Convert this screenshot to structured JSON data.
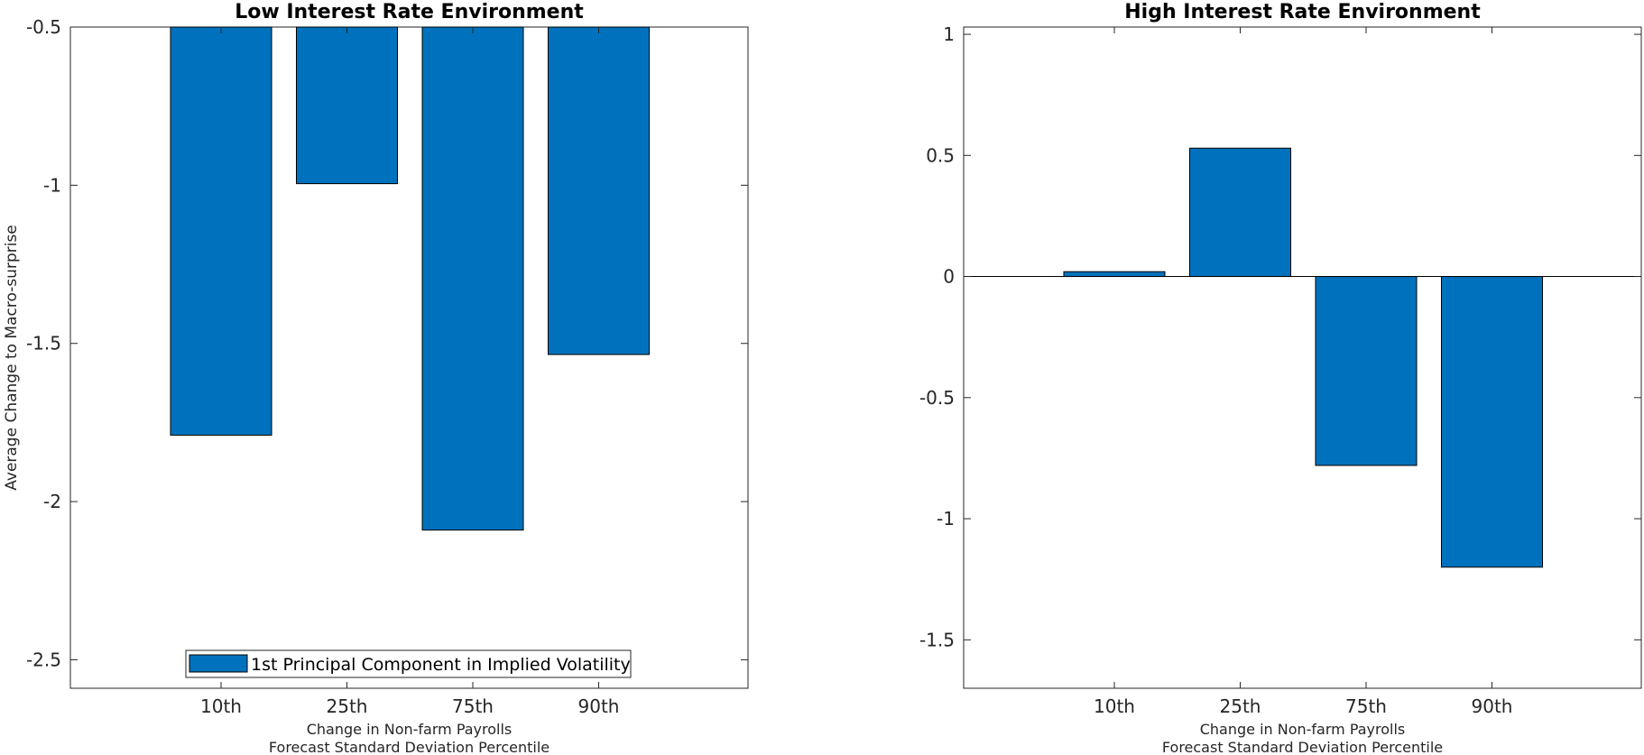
{
  "chart_data": [
    {
      "type": "bar",
      "title": "Low Interest Rate Environment",
      "categories": [
        "10th",
        "25th",
        "75th",
        "90th"
      ],
      "series": [
        {
          "name": "1st Principal Component in Implied Volatility",
          "values": [
            -1.79,
            -0.995,
            -2.09,
            -1.535
          ]
        }
      ],
      "bar_color": "#0072BD",
      "baseline": -0.5,
      "xlabel": [
        "Change in Non-farm Payrolls",
        "Forecast Standard Deviation Percentile"
      ],
      "ylabel": "Average Change to Macro-surprise",
      "ylim": [
        -2.59,
        -0.5
      ],
      "yticks": [
        "-0.5",
        "-1",
        "-1.5",
        "-2",
        "-2.5"
      ],
      "ytick_values": [
        -0.5,
        -1,
        -1.5,
        -2,
        -2.5
      ],
      "legend": "bottom-center",
      "grid": false
    },
    {
      "type": "bar",
      "title": "High Interest Rate Environment",
      "categories": [
        "10th",
        "25th",
        "75th",
        "90th"
      ],
      "series": [
        {
          "values": [
            0.02,
            0.53,
            -0.78,
            -1.2
          ]
        }
      ],
      "bar_color": "#0072BD",
      "baseline": 0,
      "xlabel": [
        "Change in Non-farm Payrolls",
        "Forecast Standard Deviation Percentile"
      ],
      "ylabel": "",
      "ylim": [
        -1.7,
        1.03
      ],
      "yticks": [
        "1",
        "0.5",
        "0",
        "-0.5",
        "-1",
        "-1.5"
      ],
      "ytick_values": [
        1,
        0.5,
        0,
        -0.5,
        -1,
        -1.5
      ],
      "legend": "none",
      "grid": false
    }
  ]
}
